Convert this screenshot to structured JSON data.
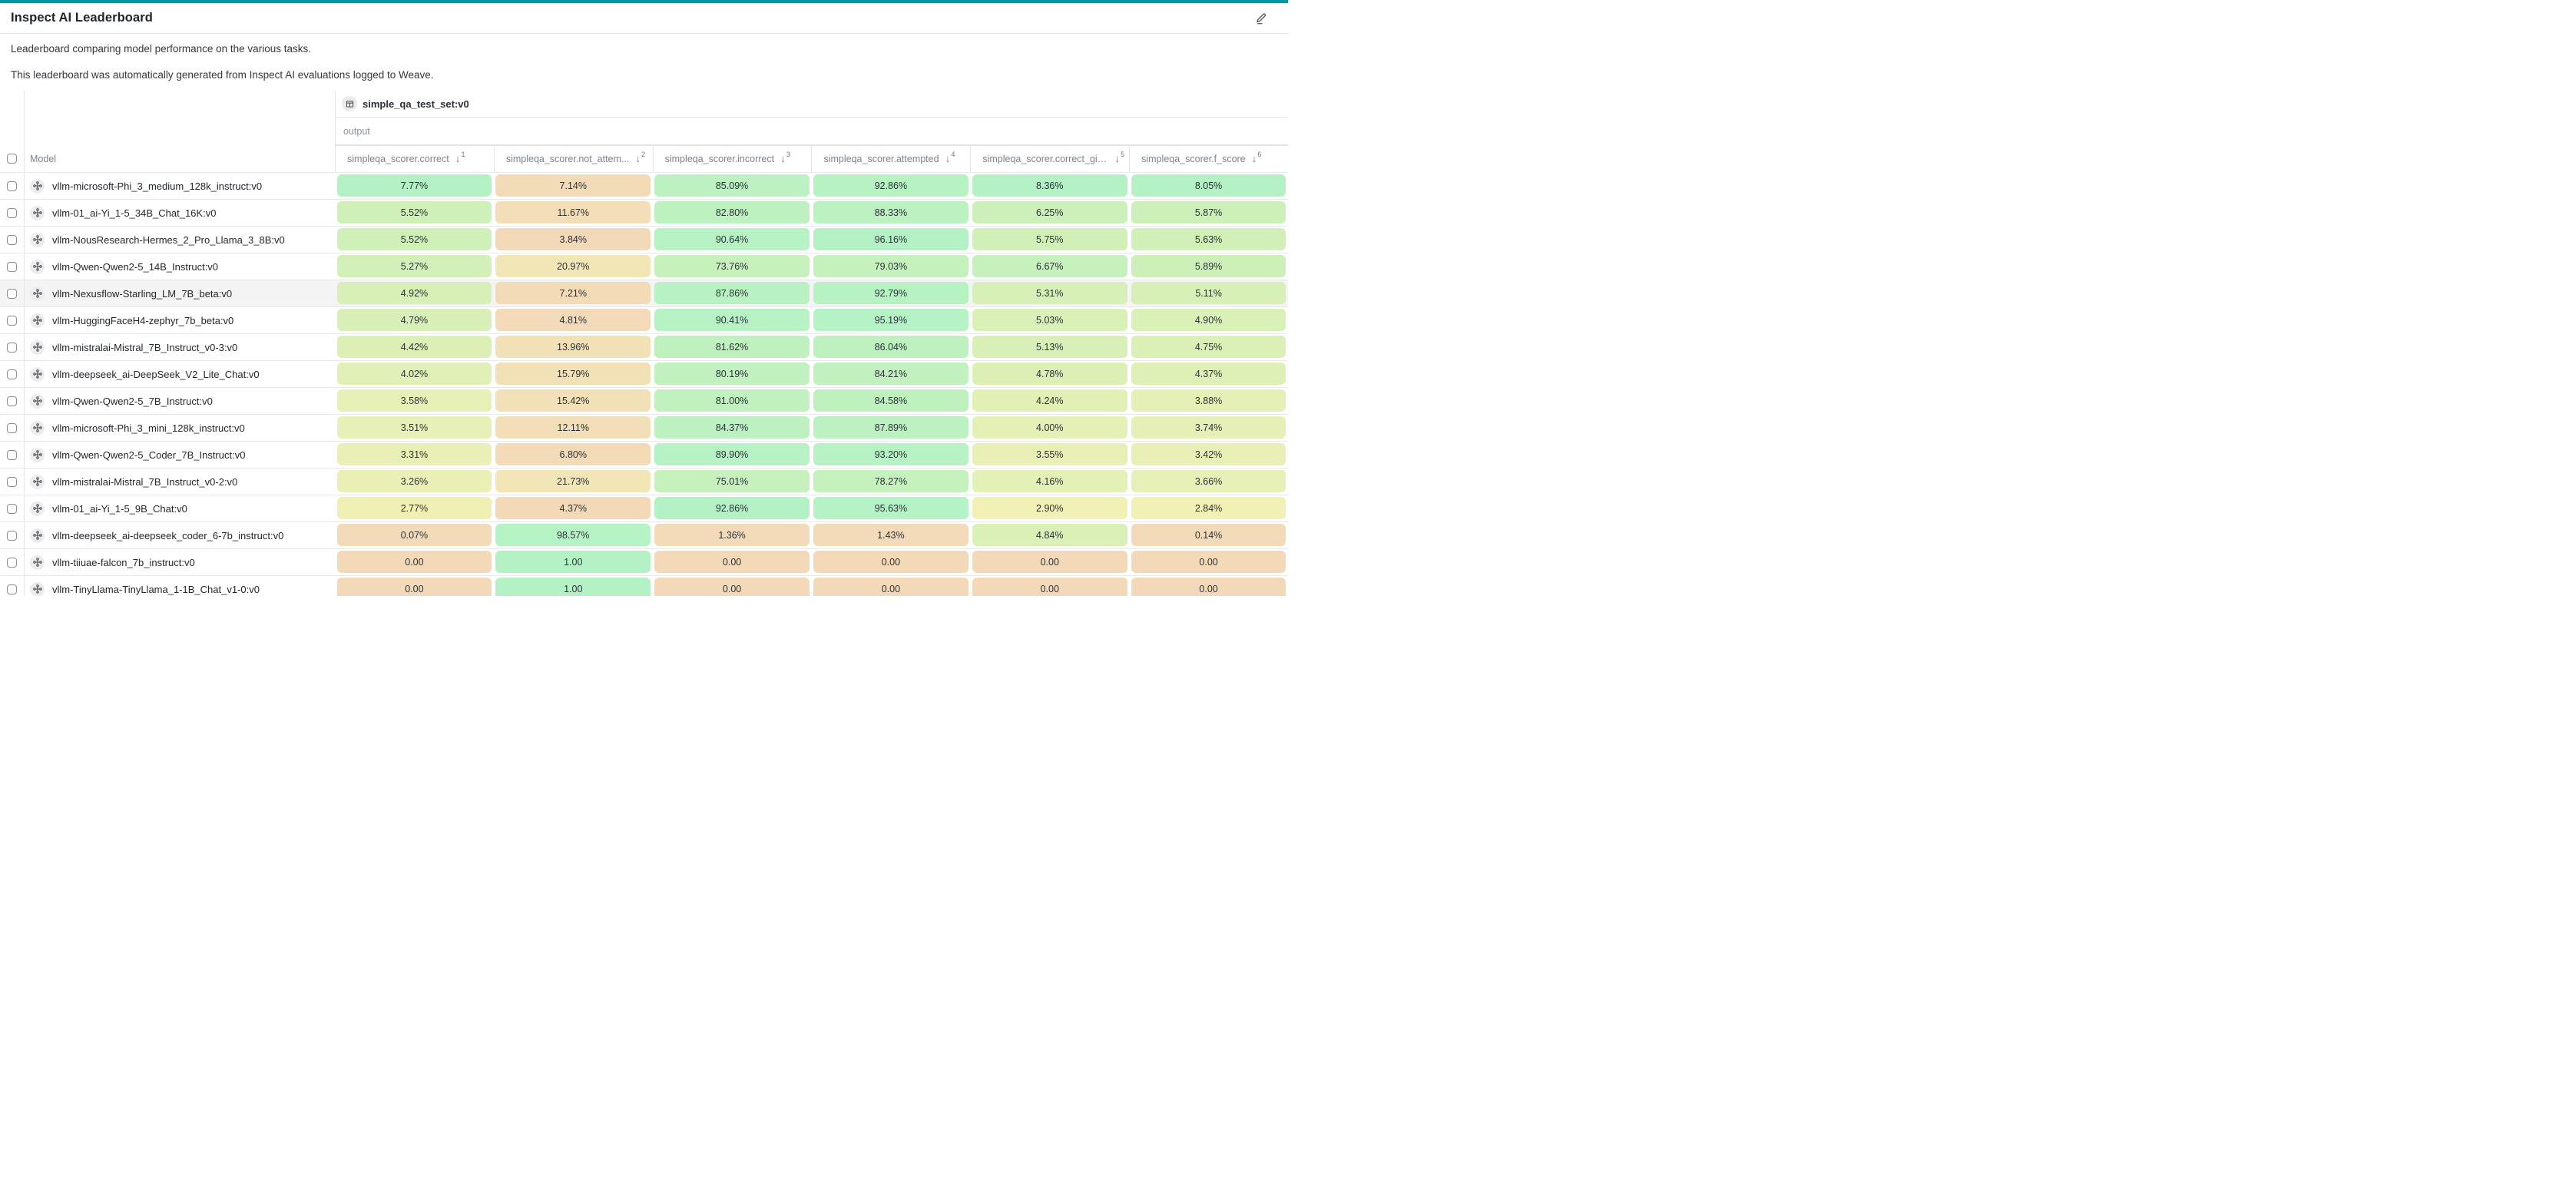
{
  "page": {
    "title": "Inspect AI Leaderboard",
    "description_lines": [
      "Leaderboard comparing model performance on the various tasks.",
      "This leaderboard was automatically generated from Inspect AI evaluations logged to Weave."
    ],
    "accent_color": "#0097A0"
  },
  "table": {
    "group_header": {
      "icon": "table-icon",
      "label": "simple_qa_test_set:v0"
    },
    "sub_header": "output",
    "model_column_label": "Model",
    "sort_icon": "↓",
    "columns": [
      {
        "label": "simpleqa_scorer.correct",
        "sort_rank": "1"
      },
      {
        "label": "simpleqa_scorer.not_attem...",
        "sort_rank": "2"
      },
      {
        "label": "simpleqa_scorer.incorrect",
        "sort_rank": "3"
      },
      {
        "label": "simpleqa_scorer.attempted",
        "sort_rank": "4"
      },
      {
        "label": "simpleqa_scorer.correct_giv...",
        "sort_rank": "5"
      },
      {
        "label": "simpleqa_scorer.f_score",
        "sort_rank": "6"
      }
    ],
    "color_scale": {
      "stops": [
        {
          "t": 0.0,
          "rgb": [
            243,
            217,
            184
          ]
        },
        {
          "t": 0.35,
          "rgb": [
            241,
            240,
            181
          ]
        },
        {
          "t": 0.7,
          "rgb": [
            208,
            240,
            183
          ]
        },
        {
          "t": 1.0,
          "rgb": [
            180,
            242,
            197
          ]
        }
      ]
    },
    "rows": [
      {
        "model": "vllm-microsoft-Phi_3_medium_128k_instruct:v0",
        "highlighted": false,
        "values": [
          {
            "display": "7.77%",
            "raw": 0.0777
          },
          {
            "display": "7.14%",
            "raw": 0.0714
          },
          {
            "display": "85.09%",
            "raw": 0.8509
          },
          {
            "display": "92.86%",
            "raw": 0.9286
          },
          {
            "display": "8.36%",
            "raw": 0.0836
          },
          {
            "display": "8.05%",
            "raw": 0.0805
          }
        ]
      },
      {
        "model": "vllm-01_ai-Yi_1-5_34B_Chat_16K:v0",
        "highlighted": false,
        "values": [
          {
            "display": "5.52%",
            "raw": 0.0552
          },
          {
            "display": "11.67%",
            "raw": 0.1167
          },
          {
            "display": "82.80%",
            "raw": 0.828
          },
          {
            "display": "88.33%",
            "raw": 0.8833
          },
          {
            "display": "6.25%",
            "raw": 0.0625
          },
          {
            "display": "5.87%",
            "raw": 0.0587
          }
        ]
      },
      {
        "model": "vllm-NousResearch-Hermes_2_Pro_Llama_3_8B:v0",
        "highlighted": false,
        "values": [
          {
            "display": "5.52%",
            "raw": 0.0552
          },
          {
            "display": "3.84%",
            "raw": 0.0384
          },
          {
            "display": "90.64%",
            "raw": 0.9064
          },
          {
            "display": "96.16%",
            "raw": 0.9616
          },
          {
            "display": "5.75%",
            "raw": 0.0575
          },
          {
            "display": "5.63%",
            "raw": 0.0563
          }
        ]
      },
      {
        "model": "vllm-Qwen-Qwen2-5_14B_Instruct:v0",
        "highlighted": false,
        "values": [
          {
            "display": "5.27%",
            "raw": 0.0527
          },
          {
            "display": "20.97%",
            "raw": 0.2097
          },
          {
            "display": "73.76%",
            "raw": 0.7376
          },
          {
            "display": "79.03%",
            "raw": 0.7903
          },
          {
            "display": "6.67%",
            "raw": 0.0667
          },
          {
            "display": "5.89%",
            "raw": 0.0589
          }
        ]
      },
      {
        "model": "vllm-Nexusflow-Starling_LM_7B_beta:v0",
        "highlighted": true,
        "values": [
          {
            "display": "4.92%",
            "raw": 0.0492
          },
          {
            "display": "7.21%",
            "raw": 0.0721
          },
          {
            "display": "87.86%",
            "raw": 0.8786
          },
          {
            "display": "92.79%",
            "raw": 0.9279
          },
          {
            "display": "5.31%",
            "raw": 0.0531
          },
          {
            "display": "5.11%",
            "raw": 0.0511
          }
        ]
      },
      {
        "model": "vllm-HuggingFaceH4-zephyr_7b_beta:v0",
        "highlighted": false,
        "values": [
          {
            "display": "4.79%",
            "raw": 0.0479
          },
          {
            "display": "4.81%",
            "raw": 0.0481
          },
          {
            "display": "90.41%",
            "raw": 0.9041
          },
          {
            "display": "95.19%",
            "raw": 0.9519
          },
          {
            "display": "5.03%",
            "raw": 0.0503
          },
          {
            "display": "4.90%",
            "raw": 0.049
          }
        ]
      },
      {
        "model": "vllm-mistralai-Mistral_7B_Instruct_v0-3:v0",
        "highlighted": false,
        "values": [
          {
            "display": "4.42%",
            "raw": 0.0442
          },
          {
            "display": "13.96%",
            "raw": 0.1396
          },
          {
            "display": "81.62%",
            "raw": 0.8162
          },
          {
            "display": "86.04%",
            "raw": 0.8604
          },
          {
            "display": "5.13%",
            "raw": 0.0513
          },
          {
            "display": "4.75%",
            "raw": 0.0475
          }
        ]
      },
      {
        "model": "vllm-deepseek_ai-DeepSeek_V2_Lite_Chat:v0",
        "highlighted": false,
        "values": [
          {
            "display": "4.02%",
            "raw": 0.0402
          },
          {
            "display": "15.79%",
            "raw": 0.1579
          },
          {
            "display": "80.19%",
            "raw": 0.8019
          },
          {
            "display": "84.21%",
            "raw": 0.8421
          },
          {
            "display": "4.78%",
            "raw": 0.0478
          },
          {
            "display": "4.37%",
            "raw": 0.0437
          }
        ]
      },
      {
        "model": "vllm-Qwen-Qwen2-5_7B_Instruct:v0",
        "highlighted": false,
        "values": [
          {
            "display": "3.58%",
            "raw": 0.0358
          },
          {
            "display": "15.42%",
            "raw": 0.1542
          },
          {
            "display": "81.00%",
            "raw": 0.81
          },
          {
            "display": "84.58%",
            "raw": 0.8458
          },
          {
            "display": "4.24%",
            "raw": 0.0424
          },
          {
            "display": "3.88%",
            "raw": 0.0388
          }
        ]
      },
      {
        "model": "vllm-microsoft-Phi_3_mini_128k_instruct:v0",
        "highlighted": false,
        "values": [
          {
            "display": "3.51%",
            "raw": 0.0351
          },
          {
            "display": "12.11%",
            "raw": 0.1211
          },
          {
            "display": "84.37%",
            "raw": 0.8437
          },
          {
            "display": "87.89%",
            "raw": 0.8789
          },
          {
            "display": "4.00%",
            "raw": 0.04
          },
          {
            "display": "3.74%",
            "raw": 0.0374
          }
        ]
      },
      {
        "model": "vllm-Qwen-Qwen2-5_Coder_7B_Instruct:v0",
        "highlighted": false,
        "values": [
          {
            "display": "3.31%",
            "raw": 0.0331
          },
          {
            "display": "6.80%",
            "raw": 0.068
          },
          {
            "display": "89.90%",
            "raw": 0.899
          },
          {
            "display": "93.20%",
            "raw": 0.932
          },
          {
            "display": "3.55%",
            "raw": 0.0355
          },
          {
            "display": "3.42%",
            "raw": 0.0342
          }
        ]
      },
      {
        "model": "vllm-mistralai-Mistral_7B_Instruct_v0-2:v0",
        "highlighted": false,
        "values": [
          {
            "display": "3.26%",
            "raw": 0.0326
          },
          {
            "display": "21.73%",
            "raw": 0.2173
          },
          {
            "display": "75.01%",
            "raw": 0.7501
          },
          {
            "display": "78.27%",
            "raw": 0.7827
          },
          {
            "display": "4.16%",
            "raw": 0.0416
          },
          {
            "display": "3.66%",
            "raw": 0.0366
          }
        ]
      },
      {
        "model": "vllm-01_ai-Yi_1-5_9B_Chat:v0",
        "highlighted": false,
        "values": [
          {
            "display": "2.77%",
            "raw": 0.0277
          },
          {
            "display": "4.37%",
            "raw": 0.0437
          },
          {
            "display": "92.86%",
            "raw": 0.9286
          },
          {
            "display": "95.63%",
            "raw": 0.9563
          },
          {
            "display": "2.90%",
            "raw": 0.029
          },
          {
            "display": "2.84%",
            "raw": 0.0284
          }
        ]
      },
      {
        "model": "vllm-deepseek_ai-deepseek_coder_6-7b_instruct:v0",
        "highlighted": false,
        "values": [
          {
            "display": "0.07%",
            "raw": 0.0007
          },
          {
            "display": "98.57%",
            "raw": 0.9857
          },
          {
            "display": "1.36%",
            "raw": 0.0136
          },
          {
            "display": "1.43%",
            "raw": 0.0143
          },
          {
            "display": "4.84%",
            "raw": 0.0484
          },
          {
            "display": "0.14%",
            "raw": 0.0014
          }
        ]
      },
      {
        "model": "vllm-tiiuae-falcon_7b_instruct:v0",
        "highlighted": false,
        "values": [
          {
            "display": "0.00",
            "raw": 0
          },
          {
            "display": "1.00",
            "raw": 1
          },
          {
            "display": "0.00",
            "raw": 0
          },
          {
            "display": "0.00",
            "raw": 0
          },
          {
            "display": "0.00",
            "raw": 0
          },
          {
            "display": "0.00",
            "raw": 0
          }
        ]
      },
      {
        "model": "vllm-TinyLlama-TinyLlama_1-1B_Chat_v1-0:v0",
        "highlighted": false,
        "values": [
          {
            "display": "0.00",
            "raw": 0
          },
          {
            "display": "1.00",
            "raw": 1
          },
          {
            "display": "0.00",
            "raw": 0
          },
          {
            "display": "0.00",
            "raw": 0
          },
          {
            "display": "0.00",
            "raw": 0
          },
          {
            "display": "0.00",
            "raw": 0
          }
        ]
      }
    ]
  }
}
